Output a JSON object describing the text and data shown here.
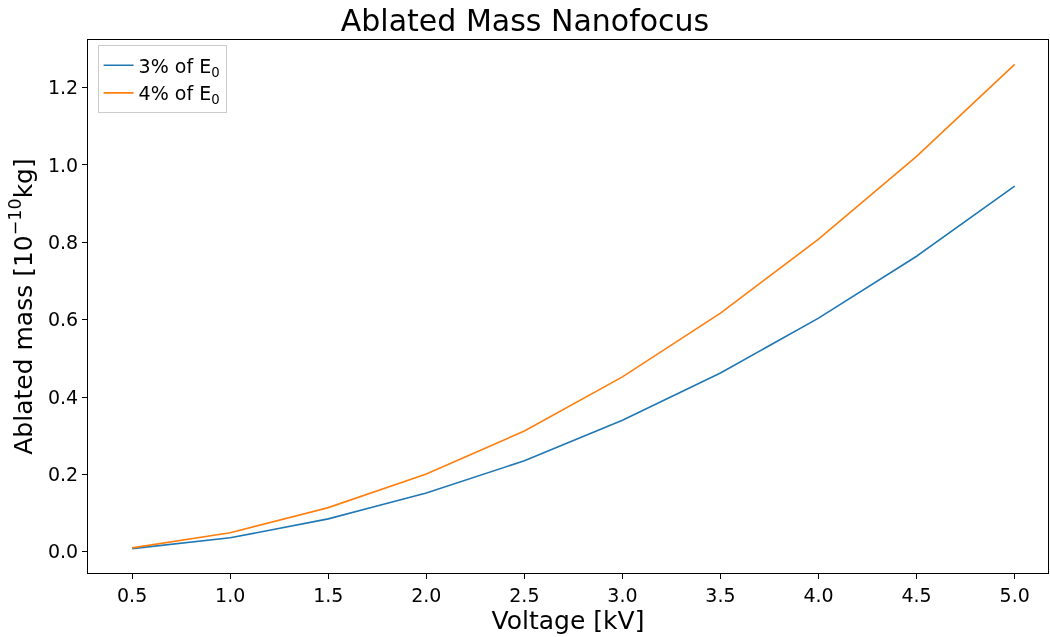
{
  "chart_data": {
    "type": "line",
    "title": "Ablated Mass Nanofocus",
    "xlabel": "Voltage [kV]",
    "ylabel": "Ablated mass [10$^{−10}$kg]",
    "x": [
      0.5,
      1.0,
      1.5,
      2.0,
      2.5,
      3.0,
      3.5,
      4.0,
      4.5,
      5.0
    ],
    "series": [
      {
        "name": "3% of E$_{0}$",
        "color": "#1f77b4",
        "values": [
          0.008,
          0.036,
          0.085,
          0.152,
          0.235,
          0.34,
          0.462,
          0.604,
          0.764,
          0.945
        ]
      },
      {
        "name": "4% of E$_{0}$",
        "color": "#ff7f0e",
        "values": [
          0.01,
          0.049,
          0.114,
          0.201,
          0.312,
          0.452,
          0.617,
          0.808,
          1.022,
          1.26
        ]
      }
    ],
    "xlim": [
      0.275,
      5.17
    ],
    "ylim": [
      -0.055,
      1.323
    ],
    "xticks": [
      {
        "value": 0.5,
        "label": "0.5"
      },
      {
        "value": 1.0,
        "label": "1.0"
      },
      {
        "value": 1.5,
        "label": "1.5"
      },
      {
        "value": 2.0,
        "label": "2.0"
      },
      {
        "value": 2.5,
        "label": "2.5"
      },
      {
        "value": 3.0,
        "label": "3.0"
      },
      {
        "value": 3.5,
        "label": "3.5"
      },
      {
        "value": 4.0,
        "label": "4.0"
      },
      {
        "value": 4.5,
        "label": "4.5"
      },
      {
        "value": 5.0,
        "label": "5.0"
      }
    ],
    "yticks": [
      {
        "value": 0.0,
        "label": "0.0"
      },
      {
        "value": 0.2,
        "label": "0.2"
      },
      {
        "value": 0.4,
        "label": "0.4"
      },
      {
        "value": 0.6,
        "label": "0.6"
      },
      {
        "value": 0.8,
        "label": "0.8"
      },
      {
        "value": 1.0,
        "label": "1.0"
      },
      {
        "value": 1.2,
        "label": "1.2"
      }
    ],
    "legend": "top left",
    "marker": "none",
    "line_style": "solid"
  }
}
